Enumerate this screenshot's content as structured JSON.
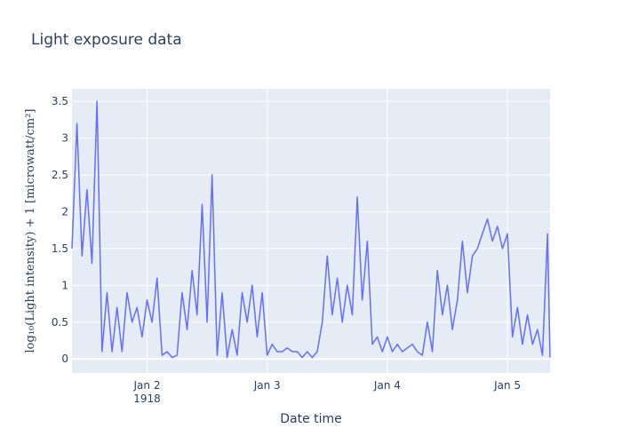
{
  "chart_data": {
    "type": "line",
    "title": "Light exposure data",
    "x_label": "Date time",
    "y_label": "log₁₀(Light intensity) + 1 [microwatt/cm²]",
    "color": "#636efa",
    "grid": true,
    "x": [
      "1918-01-01 09:00",
      "1918-01-01 10:00",
      "1918-01-01 11:00",
      "1918-01-01 12:00",
      "1918-01-01 13:00",
      "1918-01-01 14:00",
      "1918-01-01 15:00",
      "1918-01-01 16:00",
      "1918-01-01 17:00",
      "1918-01-01 18:00",
      "1918-01-01 19:00",
      "1918-01-01 20:00",
      "1918-01-01 21:00",
      "1918-01-01 22:00",
      "1918-01-01 23:00",
      "1918-01-02 00:00",
      "1918-01-02 01:00",
      "1918-01-02 02:00",
      "1918-01-02 03:00",
      "1918-01-02 04:00",
      "1918-01-02 05:00",
      "1918-01-02 06:00",
      "1918-01-02 07:00",
      "1918-01-02 08:00",
      "1918-01-02 09:00",
      "1918-01-02 10:00",
      "1918-01-02 11:00",
      "1918-01-02 12:00",
      "1918-01-02 13:00",
      "1918-01-02 14:00",
      "1918-01-02 15:00",
      "1918-01-02 16:00",
      "1918-01-02 17:00",
      "1918-01-02 18:00",
      "1918-01-02 19:00",
      "1918-01-02 20:00",
      "1918-01-02 21:00",
      "1918-01-02 22:00",
      "1918-01-02 23:00",
      "1918-01-03 00:00",
      "1918-01-03 01:00",
      "1918-01-03 02:00",
      "1918-01-03 03:00",
      "1918-01-03 04:00",
      "1918-01-03 05:00",
      "1918-01-03 06:00",
      "1918-01-03 07:00",
      "1918-01-03 08:00",
      "1918-01-03 09:00",
      "1918-01-03 10:00",
      "1918-01-03 11:00",
      "1918-01-03 12:00",
      "1918-01-03 13:00",
      "1918-01-03 14:00",
      "1918-01-03 15:00",
      "1918-01-03 16:00",
      "1918-01-03 17:00",
      "1918-01-03 18:00",
      "1918-01-03 19:00",
      "1918-01-03 20:00",
      "1918-01-03 21:00",
      "1918-01-03 22:00",
      "1918-01-03 23:00",
      "1918-01-04 00:00",
      "1918-01-04 01:00",
      "1918-01-04 02:00",
      "1918-01-04 03:00",
      "1918-01-04 04:00",
      "1918-01-04 05:00",
      "1918-01-04 06:00",
      "1918-01-04 07:00",
      "1918-01-04 08:00",
      "1918-01-04 09:00",
      "1918-01-04 10:00",
      "1918-01-04 11:00",
      "1918-01-04 12:00",
      "1918-01-04 13:00",
      "1918-01-04 14:00",
      "1918-01-04 15:00",
      "1918-01-04 16:00",
      "1918-01-04 17:00",
      "1918-01-04 18:00",
      "1918-01-04 19:00",
      "1918-01-04 20:00",
      "1918-01-04 21:00",
      "1918-01-04 22:00",
      "1918-01-04 23:00",
      "1918-01-05 00:00",
      "1918-01-05 01:00",
      "1918-01-05 02:00",
      "1918-01-05 03:00",
      "1918-01-05 04:00",
      "1918-01-05 05:00",
      "1918-01-05 06:00",
      "1918-01-05 07:00",
      "1918-01-05 08:00",
      "1918-01-05 08:30"
    ],
    "values": [
      1.5,
      3.2,
      1.4,
      2.3,
      1.3,
      3.5,
      0.1,
      0.9,
      0.1,
      0.7,
      0.1,
      0.9,
      0.5,
      0.7,
      0.3,
      0.8,
      0.5,
      1.1,
      0.05,
      0.1,
      0.02,
      0.05,
      0.9,
      0.4,
      1.2,
      0.6,
      2.1,
      0.5,
      2.5,
      0.05,
      0.9,
      0.02,
      0.4,
      0.05,
      0.9,
      0.5,
      1.0,
      0.3,
      0.9,
      0.05,
      0.2,
      0.1,
      0.1,
      0.15,
      0.1,
      0.1,
      0.02,
      0.1,
      0.02,
      0.1,
      0.5,
      1.4,
      0.6,
      1.1,
      0.5,
      1.0,
      0.6,
      2.2,
      0.8,
      1.6,
      0.2,
      0.3,
      0.1,
      0.3,
      0.1,
      0.2,
      0.1,
      0.15,
      0.2,
      0.1,
      0.05,
      0.5,
      0.1,
      1.2,
      0.6,
      1.0,
      0.4,
      0.8,
      1.6,
      0.9,
      1.4,
      1.5,
      1.7,
      1.9,
      1.6,
      1.8,
      1.5,
      1.7,
      0.3,
      0.7,
      0.2,
      0.6,
      0.2,
      0.4,
      0.05,
      1.7,
      0.02
    ],
    "xlim": [
      "1918-01-01 09:00",
      "1918-01-05 08:30"
    ],
    "xticks": [
      {
        "value": "1918-01-02 00:00",
        "label": "Jan 2\n1918"
      },
      {
        "value": "1918-01-03 00:00",
        "label": "Jan 3"
      },
      {
        "value": "1918-01-04 00:00",
        "label": "Jan 4"
      },
      {
        "value": "1918-01-05 00:00",
        "label": "Jan 5"
      }
    ],
    "ylim": [
      -0.19,
      3.67
    ],
    "yticks": [
      0,
      0.5,
      1,
      1.5,
      2,
      2.5,
      3,
      3.5
    ]
  }
}
